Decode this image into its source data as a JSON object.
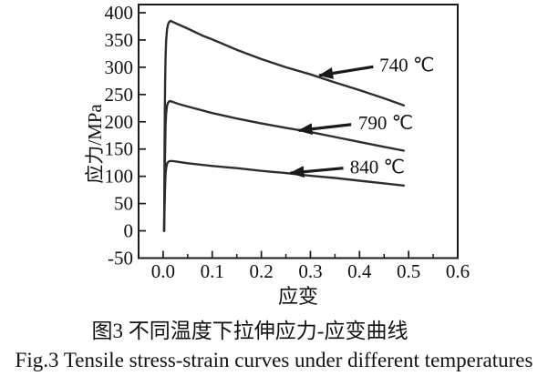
{
  "figure": {
    "caption_zh": "图3 不同温度下拉伸应力-应变曲线",
    "caption_en": "Fig.3 Tensile stress-strain curves under different temperatures"
  },
  "chart_data": {
    "type": "line",
    "title": "",
    "xlabel": "应变",
    "ylabel": "应力/MPa",
    "xlim": [
      -0.05,
      0.6
    ],
    "ylim": [
      -50,
      415
    ],
    "grid": false,
    "frame": true,
    "legend_position": "none (arrow annotations on plot)",
    "axis_color": "#1a1a1a",
    "line_color": "#2d2d2d",
    "text_color": "#111111",
    "x_ticks": [
      [
        0.0,
        "0.0"
      ],
      [
        0.1,
        "0.1"
      ],
      [
        0.2,
        "0.2"
      ],
      [
        0.3,
        "0.3"
      ],
      [
        0.4,
        "0.4"
      ],
      [
        0.5,
        "0.5"
      ],
      [
        0.6,
        "0.6"
      ]
    ],
    "x_minor_ticks": [
      0.05,
      0.15,
      0.25,
      0.35,
      0.45,
      0.55
    ],
    "y_ticks": [
      [
        -50,
        "-50"
      ],
      [
        0,
        "0"
      ],
      [
        50,
        "50"
      ],
      [
        100,
        "100"
      ],
      [
        150,
        "150"
      ],
      [
        200,
        "200"
      ],
      [
        250,
        "250"
      ],
      [
        300,
        "300"
      ],
      [
        350,
        "350"
      ],
      [
        400,
        "400"
      ]
    ],
    "series": [
      {
        "name": "740 ℃",
        "peak_stress_MPa": 385,
        "end_stress_MPa": 230,
        "points": [
          [
            0.002,
            0
          ],
          [
            0.0025,
            80
          ],
          [
            0.003,
            160
          ],
          [
            0.0035,
            225
          ],
          [
            0.004,
            275
          ],
          [
            0.005,
            320
          ],
          [
            0.006,
            348
          ],
          [
            0.008,
            370
          ],
          [
            0.01,
            379
          ],
          [
            0.013,
            384
          ],
          [
            0.016,
            385
          ],
          [
            0.02,
            383
          ],
          [
            0.03,
            379
          ],
          [
            0.05,
            371
          ],
          [
            0.08,
            358
          ],
          [
            0.1,
            351
          ],
          [
            0.15,
            332
          ],
          [
            0.2,
            315
          ],
          [
            0.25,
            300
          ],
          [
            0.3,
            287
          ],
          [
            0.35,
            272
          ],
          [
            0.4,
            258
          ],
          [
            0.45,
            243
          ],
          [
            0.49,
            230
          ]
        ]
      },
      {
        "name": "790 ℃",
        "peak_stress_MPa": 238,
        "end_stress_MPa": 147,
        "points": [
          [
            0.002,
            0
          ],
          [
            0.003,
            80
          ],
          [
            0.004,
            150
          ],
          [
            0.005,
            195
          ],
          [
            0.006,
            215
          ],
          [
            0.008,
            230
          ],
          [
            0.01,
            235
          ],
          [
            0.013,
            238
          ],
          [
            0.018,
            237
          ],
          [
            0.03,
            233
          ],
          [
            0.05,
            228
          ],
          [
            0.1,
            216
          ],
          [
            0.15,
            206
          ],
          [
            0.2,
            197
          ],
          [
            0.25,
            189
          ],
          [
            0.3,
            181
          ],
          [
            0.35,
            172
          ],
          [
            0.4,
            163
          ],
          [
            0.45,
            154
          ],
          [
            0.49,
            147
          ]
        ]
      },
      {
        "name": "840 ℃",
        "peak_stress_MPa": 128,
        "end_stress_MPa": 83,
        "points": [
          [
            0.002,
            0
          ],
          [
            0.003,
            45
          ],
          [
            0.004,
            85
          ],
          [
            0.005,
            105
          ],
          [
            0.006,
            115
          ],
          [
            0.008,
            123
          ],
          [
            0.01,
            126
          ],
          [
            0.013,
            128
          ],
          [
            0.02,
            128
          ],
          [
            0.05,
            124
          ],
          [
            0.1,
            119
          ],
          [
            0.15,
            115
          ],
          [
            0.2,
            110
          ],
          [
            0.25,
            106
          ],
          [
            0.3,
            101
          ],
          [
            0.35,
            97
          ],
          [
            0.4,
            92
          ],
          [
            0.45,
            87
          ],
          [
            0.49,
            83
          ]
        ]
      }
    ],
    "annotations": [
      {
        "label": "740 ℃",
        "text_at": [
          0.433,
          304
        ],
        "arrow_tail": [
          0.428,
          301
        ],
        "arrow_head": [
          0.318,
          285
        ]
      },
      {
        "label": "790 ℃",
        "text_at": [
          0.39,
          198
        ],
        "arrow_tail": [
          0.383,
          195
        ],
        "arrow_head": [
          0.276,
          184
        ]
      },
      {
        "label": "840 ℃",
        "text_at": [
          0.373,
          117
        ],
        "arrow_tail": [
          0.367,
          115
        ],
        "arrow_head": [
          0.259,
          106
        ]
      }
    ]
  }
}
